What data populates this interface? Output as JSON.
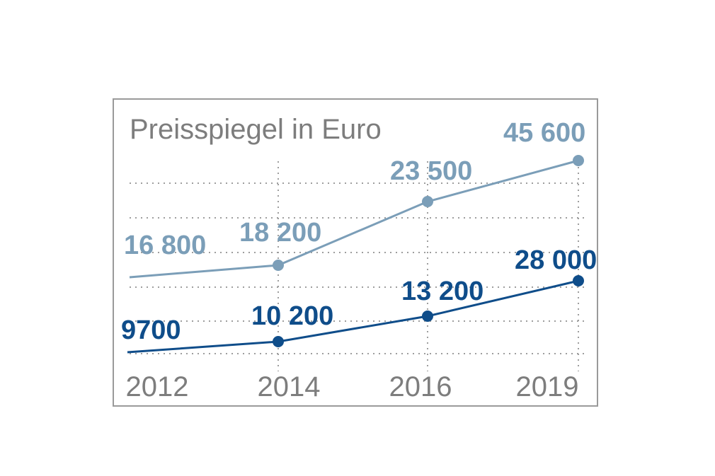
{
  "chart_data": {
    "type": "line",
    "title": "Preisspiegel in Euro",
    "xlabel": "",
    "ylabel": "",
    "categories": [
      "2012",
      "2014",
      "2016",
      "2019"
    ],
    "label_format": "thin-space thousands",
    "series": [
      {
        "values": [
          16800,
          18200,
          23500,
          45600
        ],
        "labels": [
          "16 800",
          "18 200",
          "23 500",
          "45 600"
        ],
        "color": "#7b9eb8"
      },
      {
        "values": [
          9700,
          10200,
          13200,
          28000
        ],
        "labels": [
          "9700",
          "10 200",
          "13 200",
          "28 000"
        ],
        "color": "#0f4d8a"
      }
    ],
    "grid": true,
    "legend": "none"
  }
}
